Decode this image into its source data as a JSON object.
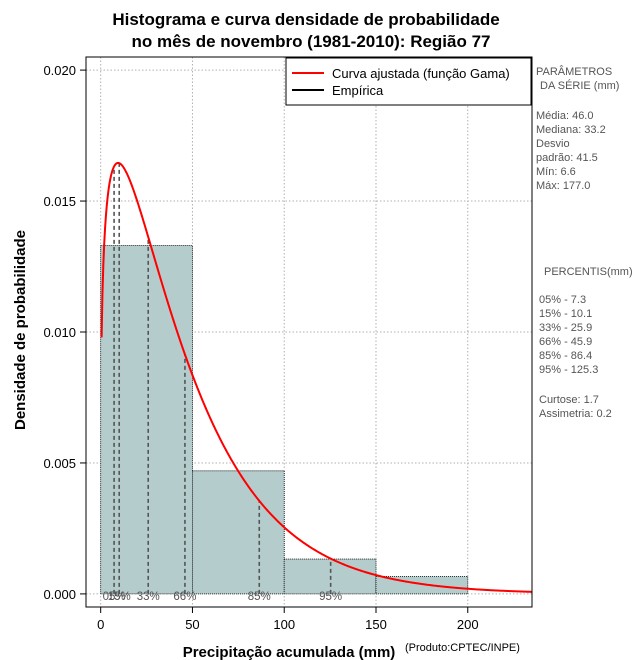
{
  "chart_data": {
    "type": "bar",
    "title_line1": "Histograma e curva densidade de probabilidade",
    "title_line2": "no mês de novembro (1981-2010): Região 77",
    "xlabel": "Precipitação acumulada (mm)",
    "ylabel": "Densidade de probabilidade",
    "credit": "(Produto:CPTEC/INPE)",
    "xlim": [
      -8,
      235
    ],
    "ylim": [
      -0.0005,
      0.0205
    ],
    "x_ticks": [
      0,
      50,
      100,
      150,
      200
    ],
    "y_ticks": [
      0.0,
      0.005,
      0.01,
      0.015,
      0.02
    ],
    "y_tick_labels": [
      "0.000",
      "0.005",
      "0.010",
      "0.015",
      "0.020"
    ],
    "histogram": [
      {
        "bin_start": 0,
        "bin_end": 50,
        "density": 0.0133
      },
      {
        "bin_start": 50,
        "bin_end": 100,
        "density": 0.0047
      },
      {
        "bin_start": 100,
        "bin_end": 150,
        "density": 0.00133
      },
      {
        "bin_start": 150,
        "bin_end": 200,
        "density": 0.00067
      }
    ],
    "gamma_curve": {
      "shape": 1.26,
      "scale": 36.5,
      "x_start": 0.5,
      "x_end": 235
    },
    "percentile_lines": [
      {
        "label": "05%",
        "value": 7.3
      },
      {
        "label": "15%",
        "value": 10.1
      },
      {
        "label": "33%",
        "value": 25.9
      },
      {
        "label": "66%",
        "value": 45.9
      },
      {
        "label": "85%",
        "value": 86.4
      },
      {
        "label": "95%",
        "value": 125.3
      }
    ],
    "legend": [
      {
        "label": "Curva ajustada (função Gama)",
        "color": "#ff0000"
      },
      {
        "label": "Empírica",
        "color": "#000000"
      }
    ],
    "colors": {
      "bar_fill": "#b4cccc",
      "curve": "#ff0000",
      "grid": "#b0b0b0",
      "percentile": "#555555"
    }
  },
  "side_panel": {
    "params_title_1": "PARÂMETROS",
    "params_title_2": "DA SÉRIE (mm)",
    "media": "Média:  46.0",
    "mediana": "Mediana:  33.2",
    "desvio_1": "Desvio",
    "desvio_2": "padrão:  41.5",
    "min": "Mín:  6.6",
    "max": "Máx:  177.0",
    "percentis_title": "PERCENTIS(mm)",
    "percentis": [
      "05% -   7.3",
      "15% -   10.1",
      "33% -   25.9",
      "66% -   45.9",
      "85% -   86.4",
      "95% -   125.3"
    ],
    "curtose": "Curtose:  1.7",
    "assimetria": "Assimetria:  0.2"
  }
}
